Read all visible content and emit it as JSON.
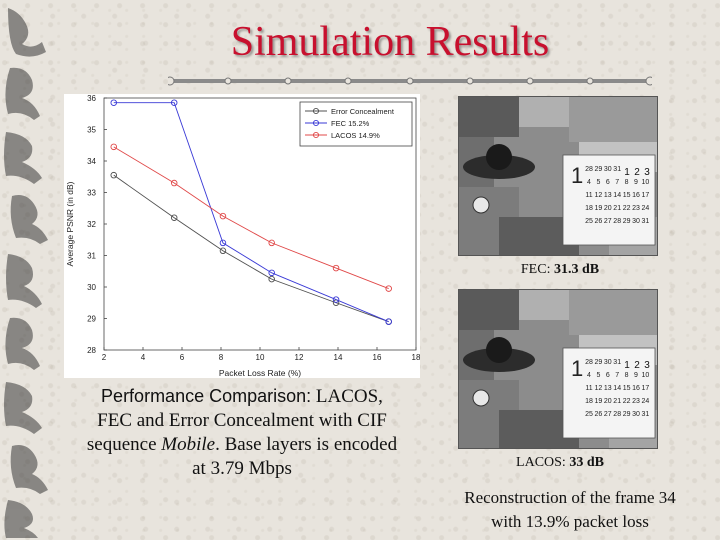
{
  "slide": {
    "title": "Simulation Results"
  },
  "chart_data": {
    "type": "line",
    "xlabel": "Packet Loss Rate (%)",
    "ylabel": "Average PSNR (in dB)",
    "xlim": [
      2,
      18
    ],
    "ylim": [
      28,
      36
    ],
    "xticks": [
      2,
      4,
      6,
      8,
      10,
      12,
      14,
      16,
      18
    ],
    "yticks": [
      28,
      29,
      30,
      31,
      32,
      33,
      34,
      35,
      36
    ],
    "grid": false,
    "legend_position": "top-right",
    "series": [
      {
        "name": "Error Concealment",
        "color": "#505050",
        "marker": "circle",
        "x": [
          2.5,
          5.6,
          8.1,
          10.6,
          13.9,
          16.6
        ],
        "y": [
          33.55,
          32.2,
          31.15,
          30.25,
          29.5,
          28.9
        ]
      },
      {
        "name": "FEC 15.2%",
        "color": "#3a3ad6",
        "marker": "circle",
        "x": [
          2.5,
          5.6,
          8.1,
          10.6,
          13.9,
          16.6
        ],
        "y": [
          35.85,
          35.85,
          31.4,
          30.45,
          29.6,
          28.9
        ]
      },
      {
        "name": "LACOS 14.9%",
        "color": "#e04848",
        "marker": "circle",
        "x": [
          2.5,
          5.6,
          8.1,
          10.6,
          13.9,
          16.6
        ],
        "y": [
          34.45,
          33.3,
          32.25,
          31.4,
          30.6,
          29.95
        ]
      }
    ]
  },
  "caption": {
    "lead": "Performance Comparison:",
    "rest_line1": " LACOS,",
    "line2": "FEC and Error Concealment  with CIF",
    "line3_a": "sequence ",
    "line3_italic": "Mobile",
    "line3_b": ". Base layers is encoded",
    "line4": "at 3.79 Mbps"
  },
  "images": {
    "fec_label_prefix": "FEC: ",
    "fec_value": "31.3 dB",
    "lacos_label_prefix": "LACOS: ",
    "lacos_value": "33 dB",
    "recon_line1": "Reconstruction of the frame 34",
    "recon_line2": "with 13.9% packet loss"
  },
  "calendar": {
    "month_glyph": "1",
    "rows": [
      [
        "28",
        "29",
        "30",
        "31",
        "1",
        "2",
        "3"
      ],
      [
        "4",
        "5",
        "6",
        "7",
        "8",
        "9",
        "10"
      ],
      [
        "11",
        "12",
        "13",
        "14",
        "15",
        "16",
        "17"
      ],
      [
        "18",
        "19",
        "20",
        "21",
        "22",
        "23",
        "24"
      ],
      [
        "25",
        "26",
        "27",
        "28",
        "29",
        "30",
        "31"
      ]
    ]
  }
}
